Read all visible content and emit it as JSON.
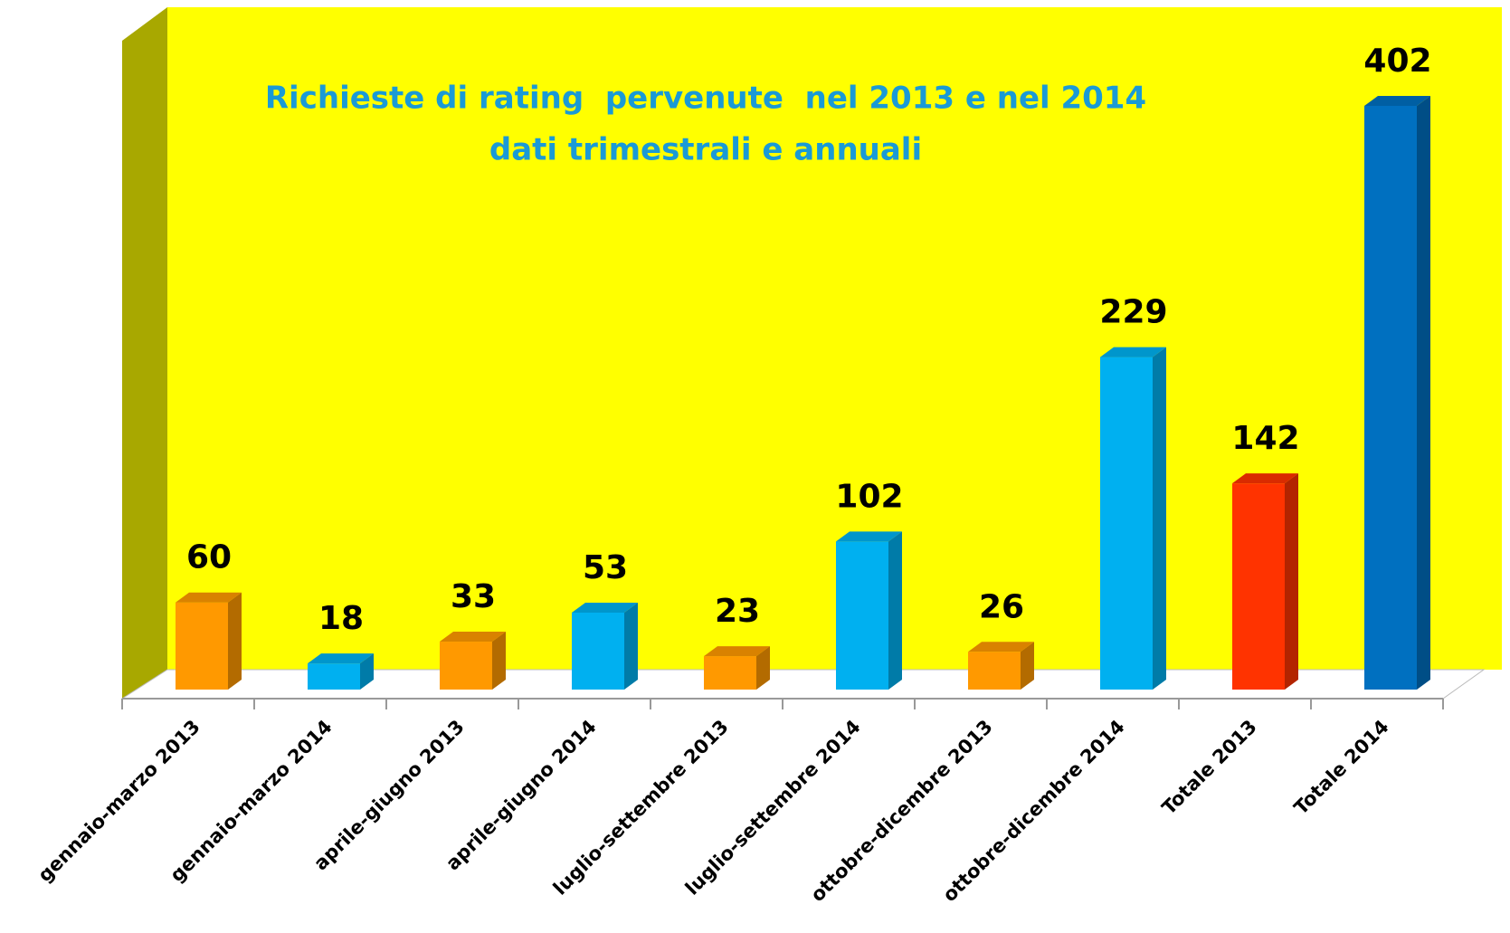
{
  "chart_data": {
    "type": "bar3d",
    "title": "Richieste di rating  pervenute  nel 2013 e nel 2014",
    "subtitle": "dati trimestrali e annuali",
    "categories": [
      "gennaio-marzo 2013",
      "gennaio-marzo 2014",
      "aprile-giugno 2013",
      "aprile-giugno 2014",
      "luglio-settembre 2013",
      "luglio-settembre 2014",
      "ottobre-dicembre 2013",
      "ottobre-dicembre 2014",
      "Totale 2013",
      "Totale 2014"
    ],
    "values": [
      60,
      18,
      33,
      53,
      23,
      102,
      26,
      229,
      142,
      402
    ],
    "colors": [
      "#ff9900",
      "#00b0f0",
      "#ff9900",
      "#00b0f0",
      "#ff9900",
      "#00b0f0",
      "#ff9900",
      "#00b0f0",
      "#ff3300",
      "#0070c0"
    ]
  }
}
